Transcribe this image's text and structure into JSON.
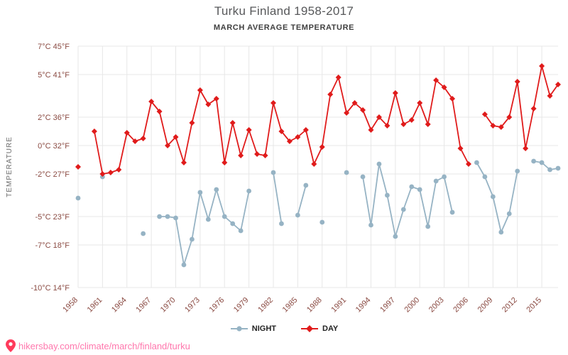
{
  "page": {
    "title": "Turku Finland 1958-2017",
    "subtitle": "MARCH AVERAGE TEMPERATURE"
  },
  "chart_data": {
    "type": "line",
    "title": "Turku Finland 1958-2017",
    "subtitle": "MARCH AVERAGE TEMPERATURE",
    "ylabel": "TEMPERATURE",
    "xlabel": "",
    "start_year": 1958,
    "end_year": 2017,
    "ylim": [
      -10,
      7
    ],
    "grid": true,
    "legend_position": "bottom",
    "x_ticks": [
      "1958",
      "1961",
      "1964",
      "1967",
      "1970",
      "1973",
      "1976",
      "1979",
      "1982",
      "1985",
      "1988",
      "1991",
      "1994",
      "1997",
      "2000",
      "2003",
      "2006",
      "2009",
      "2012",
      "2015"
    ],
    "y_ticks": [
      {
        "t": 7,
        "label": "7°C 45°F"
      },
      {
        "t": 5,
        "label": "5°C 41°F"
      },
      {
        "t": 2,
        "label": "2°C 36°F"
      },
      {
        "t": 0,
        "label": "0°C 32°F"
      },
      {
        "t": -2,
        "label": "-2°C 27°F"
      },
      {
        "t": -5,
        "label": "-5°C 23°F"
      },
      {
        "t": -7,
        "label": "-7°C 18°F"
      },
      {
        "t": -10,
        "label": "-10°C 14°F"
      }
    ],
    "series": [
      {
        "name": "NIGHT",
        "color": "#96b3c4",
        "marker": "circle",
        "values": [
          -3.7,
          null,
          null,
          -2.2,
          null,
          null,
          null,
          null,
          -6.2,
          null,
          -5.0,
          -5.0,
          -5.1,
          -8.4,
          -6.6,
          -3.3,
          -5.2,
          -3.1,
          -5.0,
          -5.5,
          -6.0,
          -3.2,
          null,
          null,
          -1.9,
          -5.5,
          null,
          -4.9,
          -2.8,
          null,
          -5.4,
          null,
          null,
          -1.9,
          null,
          -2.2,
          -5.6,
          -1.3,
          -3.5,
          -6.4,
          -4.5,
          -2.9,
          -3.1,
          -5.7,
          -2.5,
          -2.2,
          -4.7,
          null,
          null,
          -1.2,
          -2.2,
          -3.6,
          -6.1,
          -4.8,
          -1.8,
          null,
          -1.1,
          -1.2,
          -1.7,
          -1.6
        ]
      },
      {
        "name": "DAY",
        "color": "#e01b1b",
        "marker": "diamond",
        "values": [
          -1.5,
          null,
          1.0,
          -2.0,
          -1.9,
          -1.7,
          0.9,
          0.3,
          0.5,
          3.1,
          2.4,
          0.0,
          0.6,
          -1.2,
          1.6,
          3.9,
          2.9,
          3.3,
          -1.2,
          1.6,
          -0.7,
          1.1,
          -0.6,
          -0.7,
          3.0,
          1.0,
          0.3,
          0.6,
          1.1,
          -1.3,
          -0.1,
          3.6,
          4.8,
          2.3,
          3.0,
          2.5,
          1.1,
          2.0,
          1.4,
          3.7,
          1.5,
          1.8,
          3.0,
          1.5,
          4.6,
          4.1,
          3.3,
          -0.2,
          -1.3,
          null,
          2.2,
          1.4,
          1.3,
          2.0,
          4.5,
          -0.2,
          2.6,
          5.6,
          3.5,
          4.3
        ]
      }
    ]
  },
  "footer": {
    "link": "hikersbay.com/climate/march/finland/turku"
  },
  "colors": {
    "day": "#e01b1b",
    "night": "#96b3c4",
    "axis_text": "#8a4a42",
    "grid_line": "#e7e7e7",
    "ylabel_text": "#6b6b6b",
    "link": "#ff77ad",
    "pin": "#ff3b5c"
  }
}
